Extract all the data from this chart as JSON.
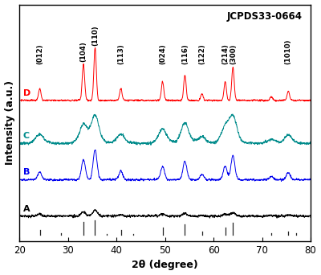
{
  "title": "JCPDS33-0664",
  "xlabel": "2θ (degree)",
  "ylabel": "Intensity (a.u.)",
  "xlim": [
    20,
    80
  ],
  "x_ticks": [
    20,
    30,
    40,
    50,
    60,
    70,
    80
  ],
  "curve_colors": [
    "#FF0000",
    "#008B8B",
    "#0000EE",
    "#000000"
  ],
  "background_color": "#FFFFFF",
  "peak_pos": [
    24.2,
    33.2,
    35.6,
    40.9,
    49.5,
    54.1,
    57.6,
    62.4,
    64.0,
    71.9,
    75.4
  ],
  "peak_annot": [
    [
      24.2,
      "(012)"
    ],
    [
      33.2,
      "(104)"
    ],
    [
      35.6,
      "(110)"
    ],
    [
      40.9,
      "(113)"
    ],
    [
      49.5,
      "(024)"
    ],
    [
      54.1,
      "(116)"
    ],
    [
      57.6,
      "(122)"
    ],
    [
      62.4,
      "(214)"
    ],
    [
      64.0,
      "(300)"
    ],
    [
      75.4,
      "(1010)"
    ]
  ],
  "jcpds_pos": [
    24.2,
    28.6,
    33.2,
    35.6,
    38.0,
    40.9,
    43.5,
    49.5,
    54.1,
    57.6,
    62.4,
    64.0,
    71.9,
    75.4,
    77.0
  ],
  "jcpds_rel_h": [
    0.3,
    0.1,
    0.9,
    1.0,
    0.06,
    0.3,
    0.07,
    0.5,
    0.7,
    0.2,
    0.5,
    0.8,
    0.12,
    0.22,
    0.08
  ]
}
